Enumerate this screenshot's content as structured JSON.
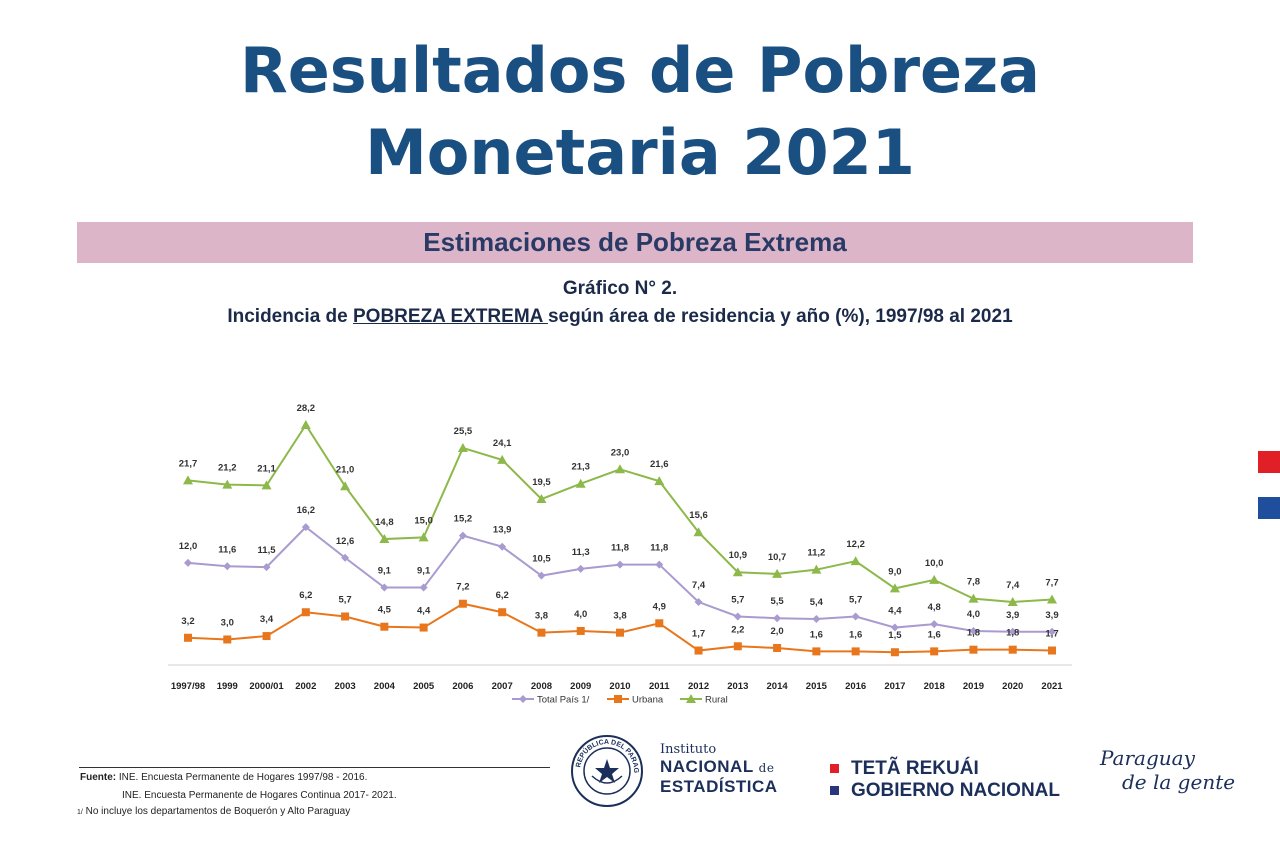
{
  "header": {
    "title_line1": "Resultados de Pobreza",
    "title_line2": "Monetaria 2021",
    "band_label": "Estimaciones de Pobreza Extrema",
    "graph_number": "Gráfico N° 2.",
    "graph_title_pre": "Incidencia de ",
    "graph_title_underlined": "POBREZA EXTREMA ",
    "graph_title_post": "según área de residencia y año (%),  1997/98 al 2021"
  },
  "side_flags": {
    "red": "#e01f26",
    "blue": "#1f4e9c"
  },
  "chart_data": {
    "type": "line",
    "categories": [
      "1997/98",
      "1999",
      "2000/01",
      "2002",
      "2003",
      "2004",
      "2005",
      "2006",
      "2007",
      "2008",
      "2009",
      "2010",
      "2011",
      "2012",
      "2013",
      "2014",
      "2015",
      "2016",
      "2017",
      "2018",
      "2019",
      "2020",
      "2021"
    ],
    "series": [
      {
        "name": "Total País 1/",
        "color": "#a99bd0",
        "marker": "diamond",
        "values": [
          12.0,
          11.6,
          11.5,
          16.2,
          12.6,
          9.1,
          9.1,
          15.2,
          13.9,
          10.5,
          11.3,
          11.8,
          11.8,
          7.4,
          5.7,
          5.5,
          5.4,
          5.7,
          4.4,
          4.8,
          4.0,
          3.9,
          3.9
        ]
      },
      {
        "name": "Urbana",
        "color": "#e8761c",
        "marker": "square",
        "values": [
          3.2,
          3.0,
          3.4,
          6.2,
          5.7,
          4.5,
          4.4,
          7.2,
          6.2,
          3.8,
          4.0,
          3.8,
          4.9,
          1.7,
          2.2,
          2.0,
          1.6,
          1.6,
          1.5,
          1.6,
          1.8,
          1.8,
          1.7
        ]
      },
      {
        "name": "Rural",
        "color": "#8db84a",
        "marker": "triangle",
        "values": [
          21.7,
          21.2,
          21.1,
          28.2,
          21.0,
          14.8,
          15.0,
          25.5,
          24.1,
          19.5,
          21.3,
          23.0,
          21.6,
          15.6,
          10.9,
          10.7,
          11.2,
          12.2,
          9.0,
          10.0,
          7.8,
          7.4,
          7.7
        ]
      }
    ],
    "ylim": [
      0,
      30
    ],
    "grid": false,
    "legend": "bottom"
  },
  "footer": {
    "source_label": "Fuente:",
    "source_line1": "INE. Encuesta Permanente de Hogares 1997/98 - 2016.",
    "source_line2": "INE. Encuesta Permanente de Hogares Continua 2017- 2021.",
    "note_mark": "1/",
    "note": "No incluye los departamentos de Boquerón y Alto Paraguay"
  },
  "logos": {
    "seal_text": "REPÚBLICA DEL PARAGUAY",
    "ine_line1": "Instituto",
    "ine_line2": "NACIONAL",
    "ine_de": "de",
    "ine_line3": "ESTADÍSTICA",
    "gov_line1": "TETÃ REKUÁI",
    "gov_line2": "GOBIERNO NACIONAL",
    "gov_red": "#e01f26",
    "gov_blue": "#2a3580",
    "slogan_line1": "Paraguay",
    "slogan_line2": "de la gente"
  }
}
